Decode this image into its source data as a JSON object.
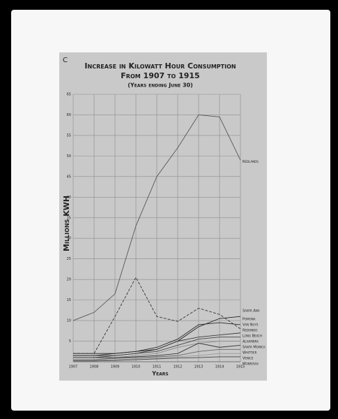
{
  "chart_data": {
    "type": "line",
    "corner_label": "C",
    "title": "Increase in Kilowatt Hour Consumption",
    "subtitle": "From 1907 to 1915",
    "note": "(Years ending June 30)",
    "y_label": "Millions KWH",
    "x_label": "Years",
    "categories": [
      "1907",
      "1908",
      "1909",
      "1910",
      "1911",
      "1912",
      "1913",
      "1914",
      "1915"
    ],
    "ylim": [
      0,
      65
    ],
    "yticks": [
      5,
      10,
      15,
      20,
      25,
      30,
      35,
      40,
      45,
      50,
      55,
      60,
      65
    ],
    "grid": true,
    "series": [
      {
        "name": "Redlands",
        "color": "#555555",
        "values": [
          10,
          12,
          16.5,
          33,
          45,
          52,
          60,
          59.5,
          49
        ]
      },
      {
        "name": "Santa Ana",
        "color": "#222222",
        "values": [
          2,
          2,
          2,
          2.5,
          3,
          5,
          8.5,
          10.5,
          11
        ]
      },
      {
        "name": "Pomona",
        "color": "#2a2a2a",
        "values": [
          1.5,
          1.5,
          2,
          2.5,
          3.5,
          5.5,
          9,
          9.5,
          9
        ]
      },
      {
        "name": "Van Nuys",
        "color": "#333333",
        "dash": true,
        "values": [
          2,
          2,
          11,
          20.5,
          11,
          9.8,
          13,
          11.5,
          8
        ]
      },
      {
        "name": "Redondo",
        "color": "#3a3a3a",
        "values": [
          1.5,
          1.5,
          1.5,
          2,
          3,
          5,
          6,
          6.5,
          7
        ]
      },
      {
        "name": "Long Beach",
        "color": "#444444",
        "values": [
          1,
          1,
          1.5,
          2,
          2.5,
          4,
          5.5,
          6,
          6
        ]
      },
      {
        "name": "Alhambra",
        "color": "#8a8a8a",
        "values": [
          0.5,
          0.5,
          1,
          1.5,
          2,
          3.5,
          4.5,
          5,
          5
        ]
      },
      {
        "name": "Santa Monica",
        "color": "#333333",
        "values": [
          1,
          1,
          1,
          1.2,
          1.5,
          2,
          4.5,
          3.5,
          4
        ]
      },
      {
        "name": "Whittier",
        "color": "#666666",
        "values": [
          0.5,
          0.5,
          0.8,
          1,
          1.2,
          1.5,
          2.5,
          3,
          3
        ]
      },
      {
        "name": "Venice",
        "color": "#9a9a9a",
        "values": [
          0.3,
          0.3,
          0.5,
          0.7,
          1,
          1.2,
          1.5,
          2,
          2
        ]
      },
      {
        "name": "Monrovia",
        "color": "#444444",
        "values": [
          0.2,
          0.2,
          0.3,
          0.5,
          0.7,
          0.9,
          1,
          1.2,
          1.2
        ]
      }
    ]
  }
}
